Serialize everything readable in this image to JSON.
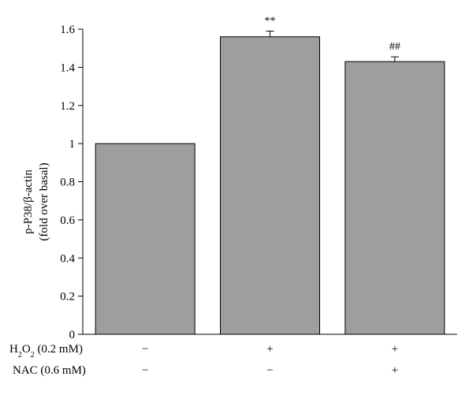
{
  "chart_data": {
    "type": "bar",
    "ylabel_line1": "p-P38/β-actin",
    "ylabel_line2": "(fold over basal)",
    "ylim": [
      0,
      1.6
    ],
    "yticks": [
      "0",
      "0.2",
      "0.4",
      "0.6",
      "0.8",
      "1",
      "1.2",
      "1.4",
      "1.6"
    ],
    "ytick_values": [
      0,
      0.2,
      0.4,
      0.6,
      0.8,
      1.0,
      1.2,
      1.4,
      1.6
    ],
    "values": [
      1.0,
      1.56,
      1.43
    ],
    "errors": [
      0,
      0.03,
      0.025
    ],
    "annotations": [
      "",
      "**",
      "##"
    ],
    "bar_color": "#9e9e9e",
    "grid": false,
    "treatments": [
      {
        "label": "H2O2 (0.2 mM)",
        "label_prefix": "H",
        "label_sub": "2",
        "label_mid": "O",
        "label_sub2": "2",
        "label_suffix": " (0.2 mM)",
        "marks": [
          "−",
          "+",
          "+"
        ]
      },
      {
        "label": "NAC (0.6 mM)",
        "marks": [
          "−",
          "−",
          "+"
        ]
      }
    ]
  }
}
